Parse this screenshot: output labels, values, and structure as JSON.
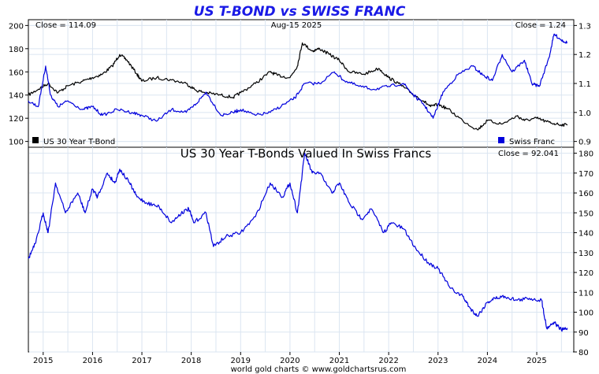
{
  "header": {
    "title": "US T-BOND vs SWISS FRANC",
    "close_left": "Close = 114.09",
    "date": "Aug-15  2025",
    "close_right": "Close = 1.24",
    "subtitle": "US 30 Year T-Bonds Valued In Swiss Francs",
    "close_bottom": "Close = 92.041",
    "footer": "world gold charts © www.goldchartsrus.com"
  },
  "legend": {
    "tbond": "US 30 Year T-Bond",
    "franc": "Swiss Franc"
  },
  "colors": {
    "tbond": "#000000",
    "franc": "#0000dd",
    "title": "#1a1ae6",
    "grid": "#dbe5f1"
  },
  "chart_data": [
    {
      "type": "line",
      "title": "US T-BOND vs SWISS FRANC",
      "x_ticks": [
        "2015",
        "2016",
        "2017",
        "2018",
        "2019",
        "2020",
        "2021",
        "2022",
        "2023",
        "2024",
        "2025"
      ],
      "x_range": [
        2014.7,
        2025.75
      ],
      "ylim_left": [
        95,
        205
      ],
      "yticks_left": [
        100,
        120,
        140,
        160,
        180,
        200
      ],
      "ylim_right": [
        0.88,
        1.32
      ],
      "yticks_right": [
        "0.9",
        "1.0",
        "1.1",
        "1.2",
        "1.3"
      ],
      "series": [
        {
          "name": "US 30 Year T-Bond",
          "axis": "left",
          "x": [
            2014.7,
            2014.9,
            2015.1,
            2015.3,
            2015.5,
            2015.8,
            2016.0,
            2016.2,
            2016.4,
            2016.55,
            2016.7,
            2016.9,
            2017.0,
            2017.3,
            2017.6,
            2017.9,
            2018.1,
            2018.3,
            2018.6,
            2018.85,
            2019.0,
            2019.3,
            2019.6,
            2019.75,
            2020.0,
            2020.15,
            2020.25,
            2020.45,
            2020.6,
            2020.8,
            2021.0,
            2021.2,
            2021.5,
            2021.8,
            2022.0,
            2022.2,
            2022.45,
            2022.7,
            2022.85,
            2023.0,
            2023.2,
            2023.5,
            2023.8,
            2024.0,
            2024.3,
            2024.6,
            2024.75,
            2025.0,
            2025.2,
            2025.4,
            2025.62
          ],
          "values": [
            140,
            145,
            150,
            142,
            148,
            152,
            155,
            158,
            165,
            175,
            170,
            158,
            152,
            155,
            153,
            150,
            144,
            142,
            140,
            138,
            142,
            150,
            160,
            157,
            155,
            165,
            185,
            178,
            180,
            175,
            170,
            160,
            158,
            163,
            155,
            150,
            142,
            135,
            130,
            132,
            128,
            118,
            110,
            118,
            115,
            122,
            118,
            120,
            117,
            115,
            114.09
          ]
        },
        {
          "name": "Swiss Franc",
          "axis": "right",
          "x": [
            2014.7,
            2014.9,
            2015.05,
            2015.15,
            2015.3,
            2015.5,
            2015.8,
            2016.0,
            2016.2,
            2016.5,
            2016.8,
            2017.0,
            2017.3,
            2017.6,
            2017.9,
            2018.1,
            2018.3,
            2018.6,
            2018.85,
            2019.0,
            2019.3,
            2019.6,
            2019.9,
            2020.1,
            2020.3,
            2020.6,
            2020.9,
            2021.1,
            2021.4,
            2021.7,
            2022.0,
            2022.3,
            2022.5,
            2022.7,
            2022.9,
            2023.1,
            2023.4,
            2023.7,
            2023.9,
            2024.1,
            2024.3,
            2024.5,
            2024.75,
            2024.9,
            2025.05,
            2025.25,
            2025.35,
            2025.5,
            2025.62
          ],
          "values": [
            1.04,
            1.02,
            1.16,
            1.06,
            1.02,
            1.04,
            1.01,
            1.02,
            0.99,
            1.01,
            1.0,
            0.99,
            0.97,
            1.01,
            1.0,
            1.03,
            1.07,
            0.99,
            1.0,
            1.01,
            0.99,
            1.0,
            1.03,
            1.05,
            1.1,
            1.1,
            1.14,
            1.11,
            1.09,
            1.08,
            1.09,
            1.1,
            1.06,
            1.03,
            0.98,
            1.07,
            1.13,
            1.16,
            1.13,
            1.11,
            1.2,
            1.14,
            1.18,
            1.1,
            1.09,
            1.19,
            1.27,
            1.25,
            1.24
          ]
        }
      ]
    },
    {
      "type": "line",
      "title": "US 30 Year T-Bonds Valued In Swiss Francs",
      "x_ticks": [
        "2015",
        "2016",
        "2017",
        "2018",
        "2019",
        "2020",
        "2021",
        "2022",
        "2023",
        "2024",
        "2025"
      ],
      "x_range": [
        2014.7,
        2025.75
      ],
      "ylim": [
        80,
        183
      ],
      "yticks": [
        80,
        90,
        100,
        110,
        120,
        130,
        140,
        150,
        160,
        170,
        180
      ],
      "series": [
        {
          "name": "",
          "x": [
            2014.7,
            2014.85,
            2015.0,
            2015.1,
            2015.25,
            2015.45,
            2015.7,
            2015.85,
            2016.0,
            2016.1,
            2016.3,
            2016.45,
            2016.55,
            2016.75,
            2016.9,
            2017.1,
            2017.35,
            2017.6,
            2017.8,
            2017.95,
            2018.05,
            2018.3,
            2018.45,
            2018.7,
            2019.0,
            2019.3,
            2019.6,
            2019.85,
            2020.0,
            2020.15,
            2020.3,
            2020.45,
            2020.6,
            2020.85,
            2021.0,
            2021.2,
            2021.45,
            2021.65,
            2021.9,
            2022.05,
            2022.3,
            2022.55,
            2022.8,
            2023.0,
            2023.25,
            2023.5,
            2023.65,
            2023.8,
            2024.0,
            2024.15,
            2024.35,
            2024.6,
            2024.85,
            2025.1,
            2025.2,
            2025.35,
            2025.5,
            2025.62
          ],
          "values": [
            127,
            135,
            150,
            140,
            165,
            150,
            160,
            150,
            162,
            158,
            170,
            165,
            172,
            165,
            158,
            155,
            153,
            145,
            150,
            152,
            145,
            150,
            133,
            138,
            140,
            148,
            165,
            158,
            165,
            150,
            180,
            170,
            170,
            160,
            165,
            155,
            147,
            152,
            140,
            145,
            142,
            132,
            125,
            122,
            112,
            108,
            102,
            98,
            105,
            107,
            108,
            106,
            107,
            106,
            92,
            95,
            91,
            92.041
          ]
        }
      ]
    }
  ]
}
